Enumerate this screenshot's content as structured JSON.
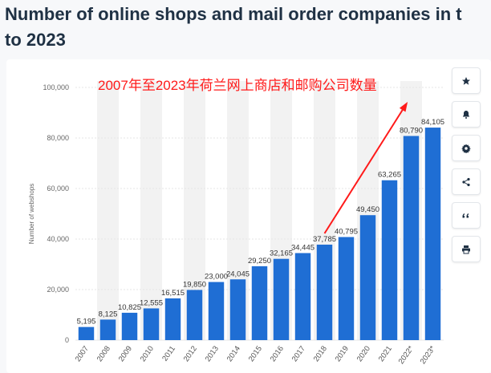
{
  "page": {
    "title_line1": "Number of online shops and mail order companies in t",
    "title_line2": "to 2023",
    "annotation": "2007年至2023年荷兰网上商店和邮购公司数量"
  },
  "toolbar": {
    "buttons": [
      {
        "name": "favorite-star-button",
        "icon": "star-icon"
      },
      {
        "name": "notification-button",
        "icon": "bell-icon"
      },
      {
        "name": "settings-button",
        "icon": "gear-icon"
      },
      {
        "name": "share-button",
        "icon": "share-icon"
      },
      {
        "name": "cite-button",
        "icon": "quote-icon"
      },
      {
        "name": "print-button",
        "icon": "printer-icon"
      }
    ]
  },
  "colors": {
    "bar": "#1f6ed4",
    "band": "#f2f2f2",
    "annotation": "#ff1a1a"
  },
  "chart_data": {
    "type": "bar",
    "categories": [
      "2007",
      "2008",
      "2009",
      "2010",
      "2011",
      "2012",
      "2013",
      "2014",
      "2015",
      "2016",
      "2017",
      "2018",
      "2019",
      "2020",
      "2021",
      "2022*",
      "2023*"
    ],
    "values": [
      5195,
      8125,
      10825,
      12555,
      16515,
      19850,
      23000,
      24045,
      29250,
      32165,
      34445,
      37785,
      40795,
      49450,
      63265,
      80790,
      84105
    ],
    "value_labels": [
      "5,195",
      "8,125",
      "10,825",
      "12,555",
      "16,515",
      "19,850",
      "23,000",
      "24,045",
      "29,250",
      "32,165",
      "34,445",
      "37,785",
      "40,795",
      "49,450",
      "63,265",
      "80,790",
      "84,105"
    ],
    "ylabel": "Number of webshops",
    "ylim": [
      0,
      100000
    ],
    "yticks": [
      0,
      20000,
      40000,
      60000,
      80000,
      100000
    ],
    "ytick_labels": [
      "0",
      "20,000",
      "40,000",
      "60,000",
      "80,000",
      "100,000"
    ],
    "grid": true,
    "legend": "none"
  }
}
